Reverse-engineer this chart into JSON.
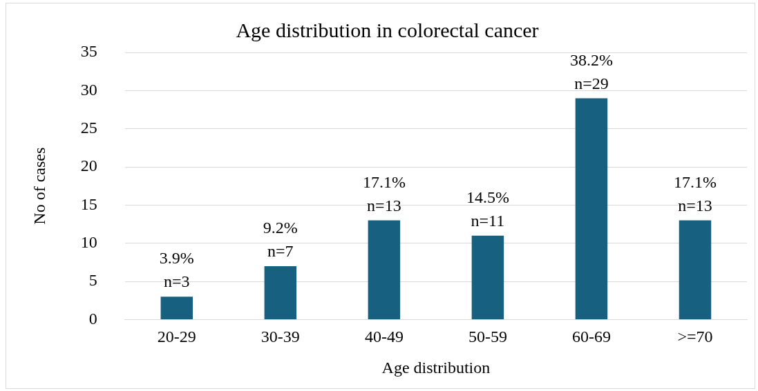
{
  "chart_data": {
    "type": "bar",
    "title": "Age distribution in colorectal cancer",
    "xlabel": "Age distribution",
    "ylabel": "No of cases",
    "categories": [
      "20-29",
      "30-39",
      "40-49",
      "50-59",
      "60-69",
      ">=70"
    ],
    "values": [
      3,
      7,
      13,
      11,
      29,
      13
    ],
    "color": "#17607f",
    "value_labels": [
      "3.9%\nn=3",
      "9.2%\nn=7",
      "17.1%\nn=13",
      "14.5%\nn=11",
      "38.2%\nn=29",
      "17.1%\nn=13"
    ],
    "ylim": [
      0,
      35
    ],
    "yticks": [
      0,
      5,
      10,
      15,
      20,
      25,
      30,
      35
    ],
    "grid": "y",
    "legend": false
  }
}
